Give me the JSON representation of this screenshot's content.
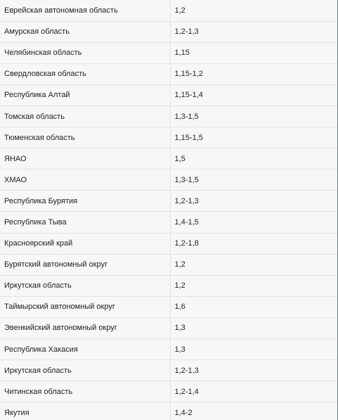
{
  "rows": [
    {
      "region": "Еврейская автономная область",
      "coef": "1,2"
    },
    {
      "region": "Амурская область",
      "coef": "1,2-1,3"
    },
    {
      "region": "Челябинская область",
      "coef": "1,15"
    },
    {
      "region": "Свердловская область",
      "coef": "1,15-1,2"
    },
    {
      "region": "Республика Алтай",
      "coef": "1,15-1,4"
    },
    {
      "region": "Томская область",
      "coef": "1,3-1,5"
    },
    {
      "region": "Тюменская область",
      "coef": "1,15-1,5"
    },
    {
      "region": "ЯНАО",
      "coef": "1,5"
    },
    {
      "region": "ХМАО",
      "coef": "1,3-1,5"
    },
    {
      "region": "Республика Бурятия",
      "coef": "1,2-1,3"
    },
    {
      "region": "Республика Тыва",
      "coef": "1,4-1,5"
    },
    {
      "region": "Красноярский край",
      "coef": "1,2-1,8"
    },
    {
      "region": "Бурятский автономный округ",
      "coef": "1,2"
    },
    {
      "region": "Иркутская область",
      "coef": "1,2"
    },
    {
      "region": "Таймырский автономный округ",
      "coef": "1,6"
    },
    {
      "region": "Эвенкийский автономный округ",
      "coef": "1,3"
    },
    {
      "region": "Республика Хакасия",
      "coef": "1,3"
    },
    {
      "region": "Иркутская область",
      "coef": "1,2-1,3"
    },
    {
      "region": "Читинская область",
      "coef": "1,2-1,4"
    },
    {
      "region": "Якутия",
      "coef": "1,4-2"
    }
  ]
}
